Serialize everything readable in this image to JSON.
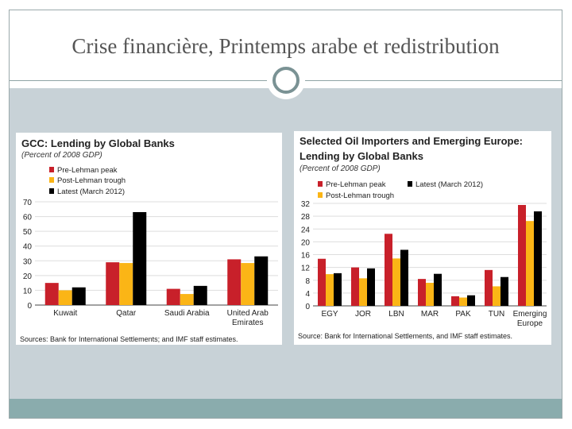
{
  "slide": {
    "title": "Crise financière, Printemps arabe et redistribution"
  },
  "colors": {
    "pre": "#c8202a",
    "post": "#fbb516",
    "latest": "#000000"
  },
  "chart_data": [
    {
      "type": "bar",
      "title": "GCC: Lending by Global Banks",
      "subtitle": "(Percent of 2008 GDP)",
      "categories": [
        "Kuwait",
        "Qatar",
        "Saudi Arabia",
        "United Arab Emirates"
      ],
      "series": [
        {
          "name": "Pre-Lehman peak",
          "values": [
            15,
            29,
            11,
            31
          ]
        },
        {
          "name": "Post-Lehman trough",
          "values": [
            10,
            28.5,
            7.5,
            28.5
          ]
        },
        {
          "name": "Latest (March 2012)",
          "values": [
            12,
            63,
            13,
            33
          ]
        }
      ],
      "ylim": [
        0,
        70
      ],
      "yticks": [
        0,
        10,
        20,
        30,
        40,
        50,
        60,
        70
      ],
      "grid": true,
      "legend": "top-left",
      "source": "Sources: Bank for International Settlements; and IMF staff estimates."
    },
    {
      "type": "bar",
      "title": "Selected Oil Importers and Emerging Europe: Lending by Global Banks",
      "subtitle": "(Percent of 2008 GDP)",
      "categories": [
        "EGY",
        "JOR",
        "LBN",
        "MAR",
        "PAK",
        "TUN",
        "Emerging Europe"
      ],
      "series": [
        {
          "name": "Pre-Lehman peak",
          "values": [
            14.7,
            12,
            22.5,
            8.4,
            3,
            11.2,
            31.5
          ]
        },
        {
          "name": "Post-Lehman trough",
          "values": [
            9.9,
            8.6,
            14.8,
            7.2,
            2.6,
            6.1,
            26.5
          ]
        },
        {
          "name": "Latest (March 2012)",
          "values": [
            10.2,
            11.7,
            17.5,
            10,
            3.3,
            9,
            29.5
          ]
        }
      ],
      "ylim": [
        0,
        32
      ],
      "yticks": [
        0,
        4,
        8,
        12,
        16,
        20,
        24,
        28,
        32
      ],
      "grid": true,
      "legend": "top-left",
      "source": "Source: Bank for International Settlements, and IMF staff estimates."
    }
  ]
}
